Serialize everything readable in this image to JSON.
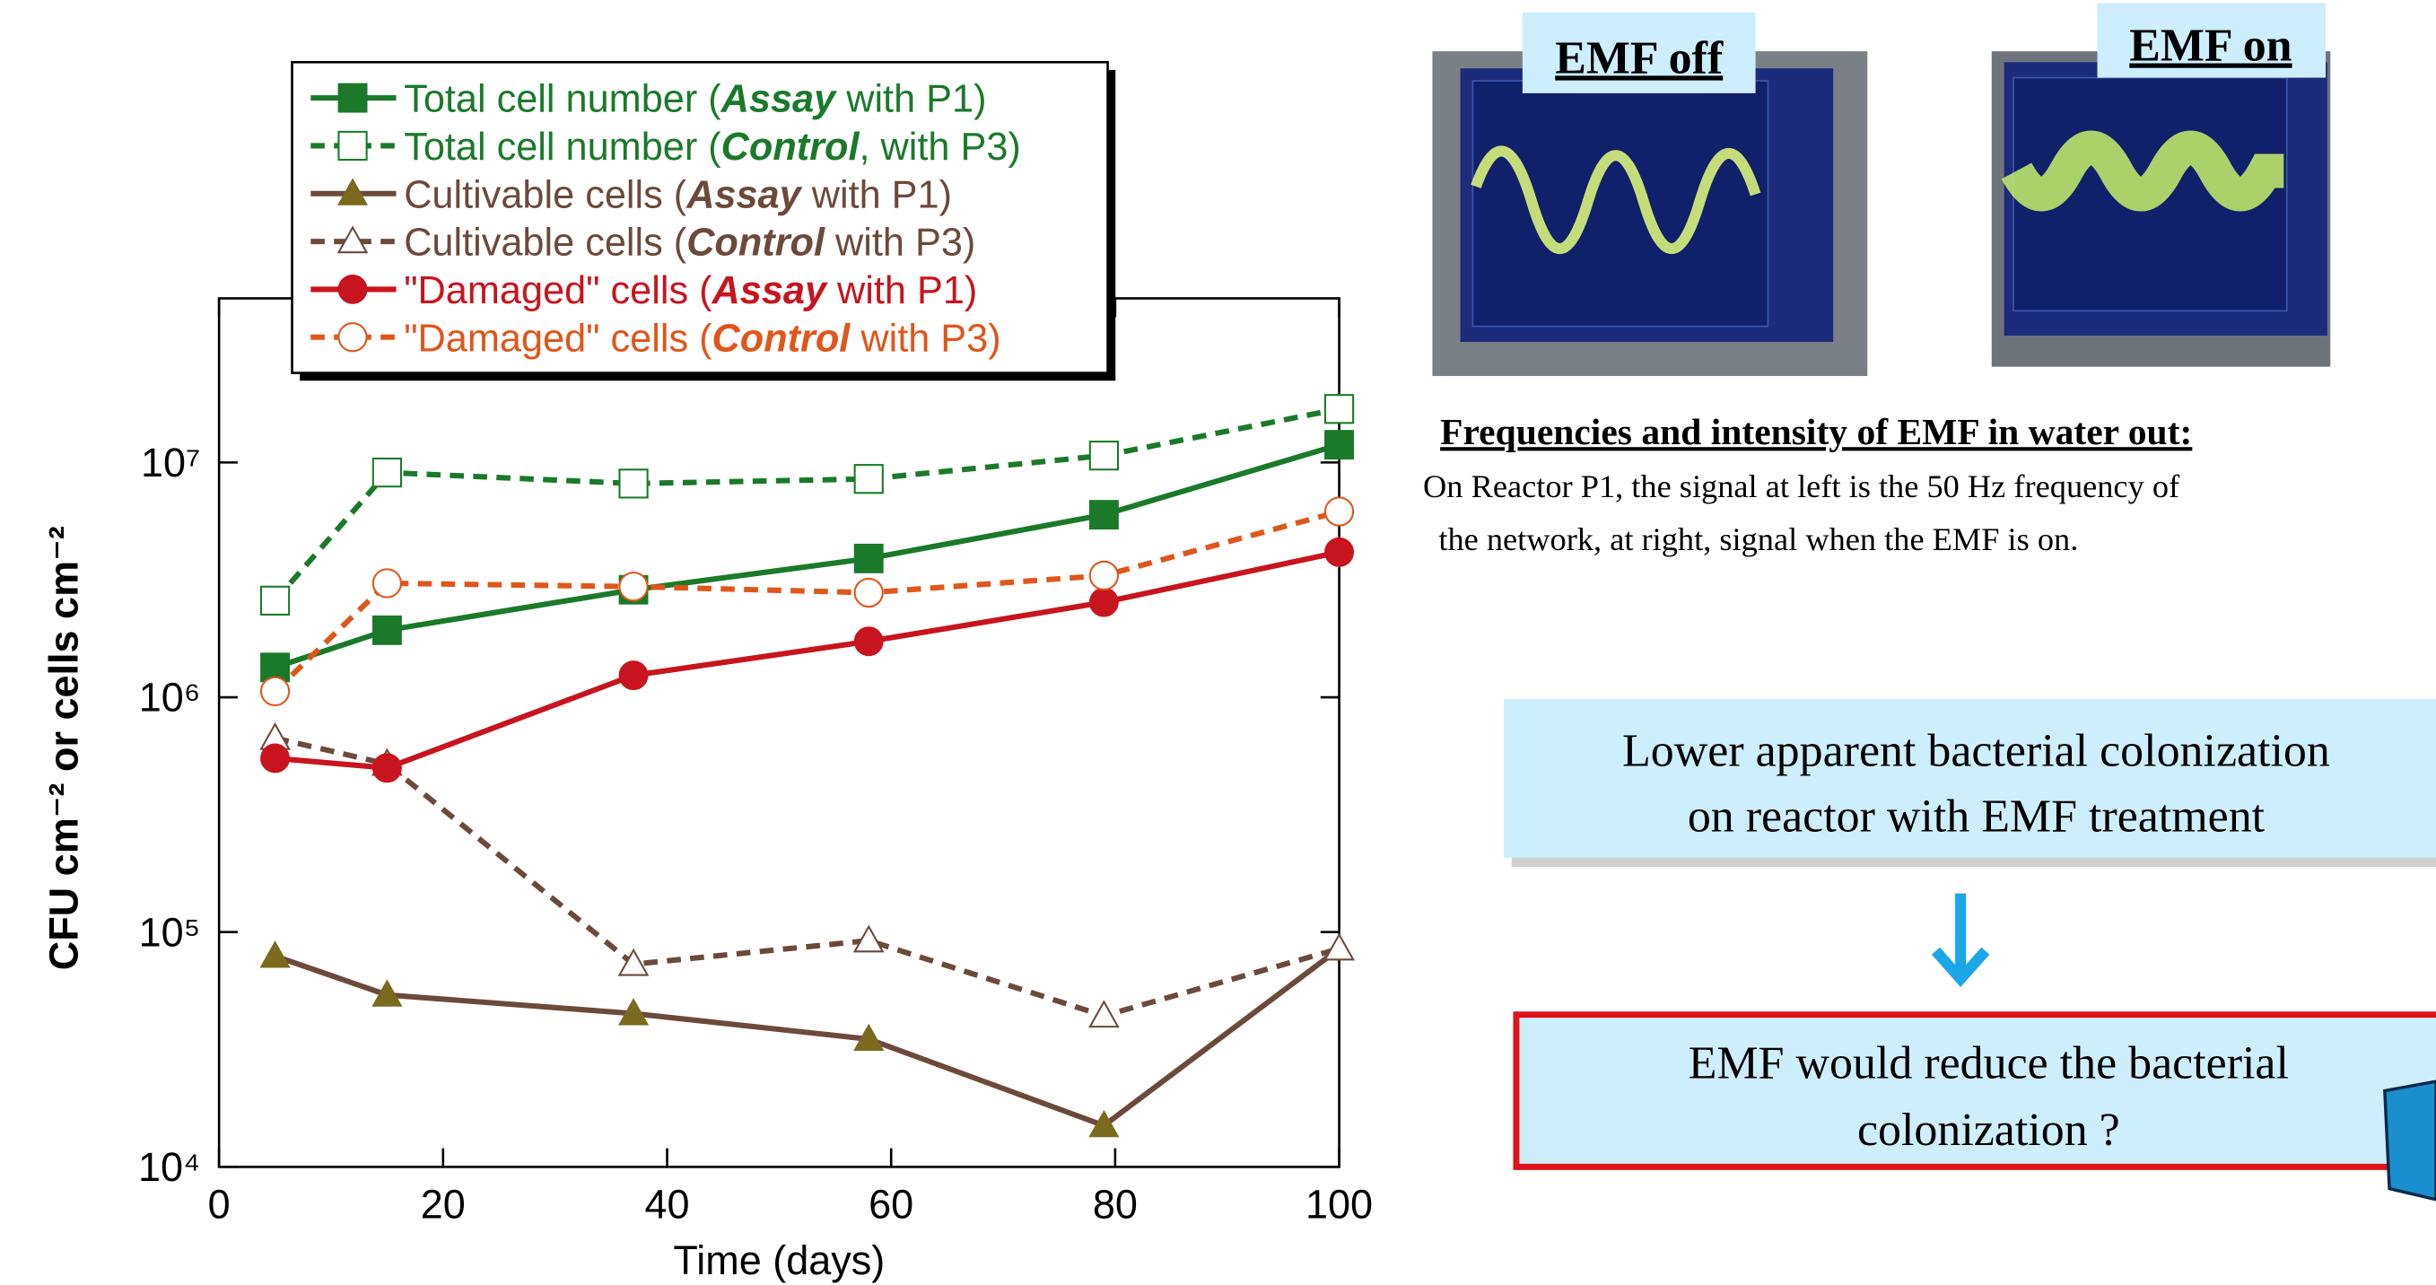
{
  "chart_data": {
    "type": "line",
    "ylabel": "CFU cm⁻² or cells cm⁻²",
    "xlabel": "Time (days)",
    "x": [
      5,
      15,
      37,
      58,
      79,
      100
    ],
    "xlim": [
      0,
      100
    ],
    "xticks": [
      0,
      20,
      40,
      60,
      80,
      100
    ],
    "ylim": [
      10000,
      50000000
    ],
    "log_y": true,
    "yticks": [
      {
        "value": 10000,
        "label": "10⁴"
      },
      {
        "value": 100000,
        "label": "10⁵"
      },
      {
        "value": 1000000,
        "label": "10⁶"
      },
      {
        "value": 10000000,
        "label": "10⁷"
      }
    ],
    "series": [
      {
        "name": "Total cell number (Assay with P1)",
        "emphasis": "Assay",
        "color": "#1a7a2a",
        "marker_color": "#1a7a2a",
        "marker": "square",
        "filled": true,
        "dashed": false,
        "values": [
          1340000,
          1930000,
          2870000,
          3900000,
          5990000,
          11900000
        ]
      },
      {
        "name": "Total cell number (Control, with P3)",
        "emphasis": "Control",
        "color": "#1a7a2a",
        "marker_color": "#1a7a2a",
        "marker": "square",
        "filled": false,
        "dashed": true,
        "values": [
          2580000,
          9060000,
          8130000,
          8510000,
          10700000,
          16900000
        ]
      },
      {
        "name": "Cultivable cells (Assay with P1)",
        "emphasis": "Assay",
        "color": "#6b4a3c",
        "marker_color": "#7a6a1e",
        "marker": "triangle",
        "filled": true,
        "dashed": false,
        "values": [
          79000,
          54000,
          45000,
          35000,
          15000,
          85000
        ]
      },
      {
        "name": "Cultivable cells (Control with P3)",
        "emphasis": "Control",
        "color": "#6b4a3c",
        "marker_color": "#6b4a3c",
        "marker": "triangle",
        "filled": false,
        "dashed": true,
        "values": [
          670000,
          520000,
          73000,
          92000,
          44000,
          85000
        ]
      },
      {
        "name": "\"Damaged\" cells (Assay with P1)",
        "emphasis": "Assay",
        "color": "#c8141e",
        "marker_color": "#c8141e",
        "marker": "circle",
        "filled": true,
        "dashed": false,
        "values": [
          550000,
          500000,
          1240000,
          1730000,
          2540000,
          4150000
        ]
      },
      {
        "name": "\"Damaged\" cells (Control with P3)",
        "emphasis": "Control",
        "color": "#e0561a",
        "marker_color": "#e0561a",
        "marker": "circle",
        "filled": false,
        "dashed": true,
        "values": [
          1060000,
          3060000,
          2960000,
          2790000,
          3300000,
          6180000
        ]
      }
    ]
  },
  "panel": {
    "photos": [
      {
        "label": "EMF off"
      },
      {
        "label": "EMF on"
      }
    ],
    "heading": "Frequencies and intensity of EMF in water out:",
    "text_lines": [
      "On Reactor P1, the signal at left is the 50 Hz frequency of",
      "the network, at right, signal when the EMF is on."
    ],
    "conclusion_lines": [
      "Lower apparent bacterial colonization",
      "on reactor with EMF treatment"
    ],
    "question_lines": [
      "EMF would reduce the bacterial",
      "colonization ?"
    ]
  }
}
